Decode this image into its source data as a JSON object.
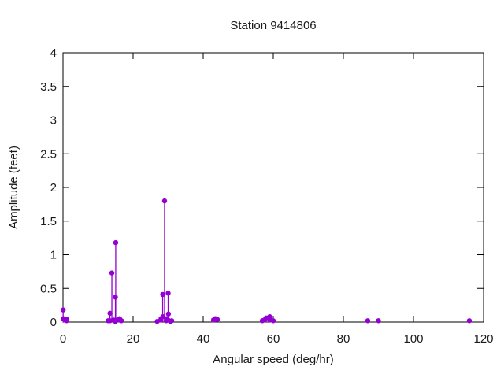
{
  "chart_data": {
    "type": "scatter",
    "style": "impulses-with-points (stem plot, no grid, no legend)",
    "title": "Station 9414806",
    "xlabel": "Angular speed (deg/hr)",
    "ylabel": "Amplitude (feet)",
    "xlim": [
      0,
      120
    ],
    "ylim": [
      0,
      4
    ],
    "xticks": [
      "0",
      "20",
      "40",
      "60",
      "80",
      "100",
      "120"
    ],
    "xtick_values": [
      0,
      20,
      40,
      60,
      80,
      100,
      120
    ],
    "yticks": [
      "0",
      "0.5",
      "1",
      "1.5",
      "2",
      "2.5",
      "3",
      "3.5",
      "4"
    ],
    "ytick_values": [
      0,
      0.5,
      1,
      1.5,
      2,
      2.5,
      3,
      3.5,
      4
    ],
    "grid": false,
    "legend_position": "none",
    "colors": {
      "point_color": "#9400d3",
      "axis_color": "#000000",
      "text_color": "#1b1b1b",
      "background": "#ffffff"
    },
    "series": [
      {
        "name": "amplitude",
        "points": [
          [
            0.04,
            0.18
          ],
          [
            0.08,
            0.05
          ],
          [
            0.54,
            0.03
          ],
          [
            1.02,
            0.02
          ],
          [
            1.1,
            0.04
          ],
          [
            12.85,
            0.02
          ],
          [
            13.4,
            0.13
          ],
          [
            13.47,
            0.02
          ],
          [
            13.94,
            0.73
          ],
          [
            14.49,
            0.03
          ],
          [
            14.92,
            0.01
          ],
          [
            14.96,
            0.37
          ],
          [
            15.04,
            1.18
          ],
          [
            15.58,
            0.03
          ],
          [
            16.14,
            0.05
          ],
          [
            16.68,
            0.02
          ],
          [
            26.87,
            0.01
          ],
          [
            27.9,
            0.03
          ],
          [
            27.97,
            0.05
          ],
          [
            28.44,
            0.41
          ],
          [
            28.51,
            0.08
          ],
          [
            28.98,
            1.8
          ],
          [
            29.46,
            0.02
          ],
          [
            29.53,
            0.05
          ],
          [
            29.96,
            0.03
          ],
          [
            30.0,
            0.43
          ],
          [
            30.08,
            0.12
          ],
          [
            30.63,
            0.01
          ],
          [
            31.02,
            0.02
          ],
          [
            42.93,
            0.03
          ],
          [
            43.48,
            0.05
          ],
          [
            44.03,
            0.04
          ],
          [
            56.87,
            0.02
          ],
          [
            57.42,
            0.03
          ],
          [
            57.97,
            0.06
          ],
          [
            58.98,
            0.08
          ],
          [
            59.07,
            0.03
          ],
          [
            60.0,
            0.02
          ],
          [
            86.95,
            0.02
          ],
          [
            90.0,
            0.02
          ],
          [
            115.94,
            0.02
          ]
        ]
      }
    ]
  }
}
